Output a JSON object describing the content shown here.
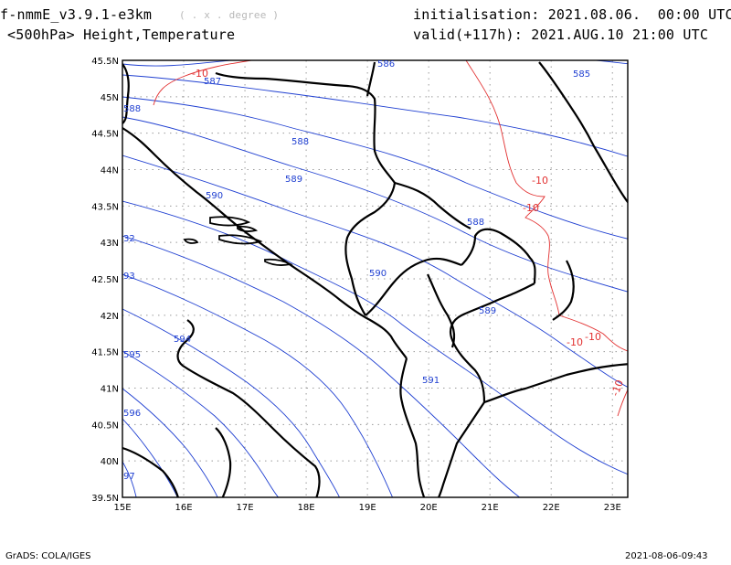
{
  "header": {
    "model": "f-nmmE_v3.9.1-e3km",
    "units": "( . x . degree )",
    "field": "<500hPa> Height,Temperature",
    "init": "initialisation: 2021.08.06.  00:00 UTC",
    "valid": "valid(+117h): 2021.AUG.10 21:00 UTC"
  },
  "footer": {
    "credit": "GrADS: COLA/IGES",
    "timestamp": "2021-08-06-09:43"
  },
  "map": {
    "lon_labels": [
      "15E",
      "16E",
      "17E",
      "18E",
      "19E",
      "20E",
      "21E",
      "22E",
      "23E"
    ],
    "lat_labels": [
      "45.5N",
      "45N",
      "44.5N",
      "44N",
      "43.5N",
      "43N",
      "42.5N",
      "42N",
      "41.5N",
      "41N",
      "40.5N",
      "40N",
      "39.5N"
    ],
    "colors": {
      "height": "#1f3fd1",
      "temperature": "#e23030",
      "border": "#000000",
      "grid": "#9a9a9a"
    },
    "height_labels": [
      "586",
      "585",
      "587",
      "588",
      "588",
      "589",
      "590",
      "588",
      "590",
      "589",
      "32",
      "93",
      "594",
      "595",
      "591",
      "596",
      "97"
    ],
    "temp_labels": [
      "-10",
      "-10",
      "-10",
      "-10",
      "-10",
      "-10"
    ]
  }
}
